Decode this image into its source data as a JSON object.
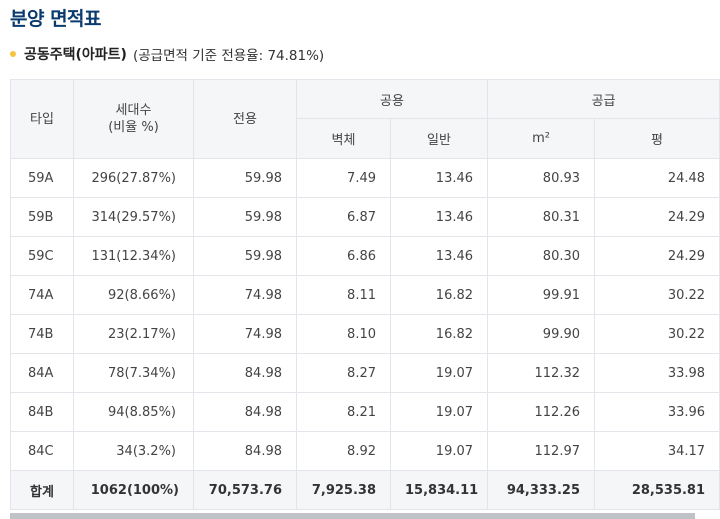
{
  "page": {
    "title": "분양 면적표",
    "subtitle_main": "공동주택(아파트)",
    "subtitle_note": "(공급면적 기준 전용율: 74.81%)"
  },
  "table": {
    "headers": {
      "type": "타입",
      "households": "세대수\n(비율 %)",
      "exclusive": "전용",
      "common": "공용",
      "wall": "벽체",
      "general": "일반",
      "supply": "공급",
      "m2": "m²",
      "pyeong": "평"
    },
    "rows": [
      [
        "59A",
        "296(27.87%)",
        "59.98",
        "7.49",
        "13.46",
        "80.93",
        "24.48"
      ],
      [
        "59B",
        "314(29.57%)",
        "59.98",
        "6.87",
        "13.46",
        "80.31",
        "24.29"
      ],
      [
        "59C",
        "131(12.34%)",
        "59.98",
        "6.86",
        "13.46",
        "80.30",
        "24.29"
      ],
      [
        "74A",
        "92(8.66%)",
        "74.98",
        "8.11",
        "16.82",
        "99.91",
        "30.22"
      ],
      [
        "74B",
        "23(2.17%)",
        "74.98",
        "8.10",
        "16.82",
        "99.90",
        "30.22"
      ],
      [
        "84A",
        "78(7.34%)",
        "84.98",
        "8.27",
        "19.07",
        "112.32",
        "33.98"
      ],
      [
        "84B",
        "94(8.85%)",
        "84.98",
        "8.21",
        "19.07",
        "112.26",
        "33.96"
      ],
      [
        "84C",
        "34(3.2%)",
        "84.98",
        "8.92",
        "19.07",
        "112.97",
        "34.17"
      ]
    ],
    "total": [
      "합계",
      "1062(100%)",
      "70,573.76",
      "7,925.38",
      "15,834.11",
      "94,333.25",
      "28,535.81"
    ]
  }
}
